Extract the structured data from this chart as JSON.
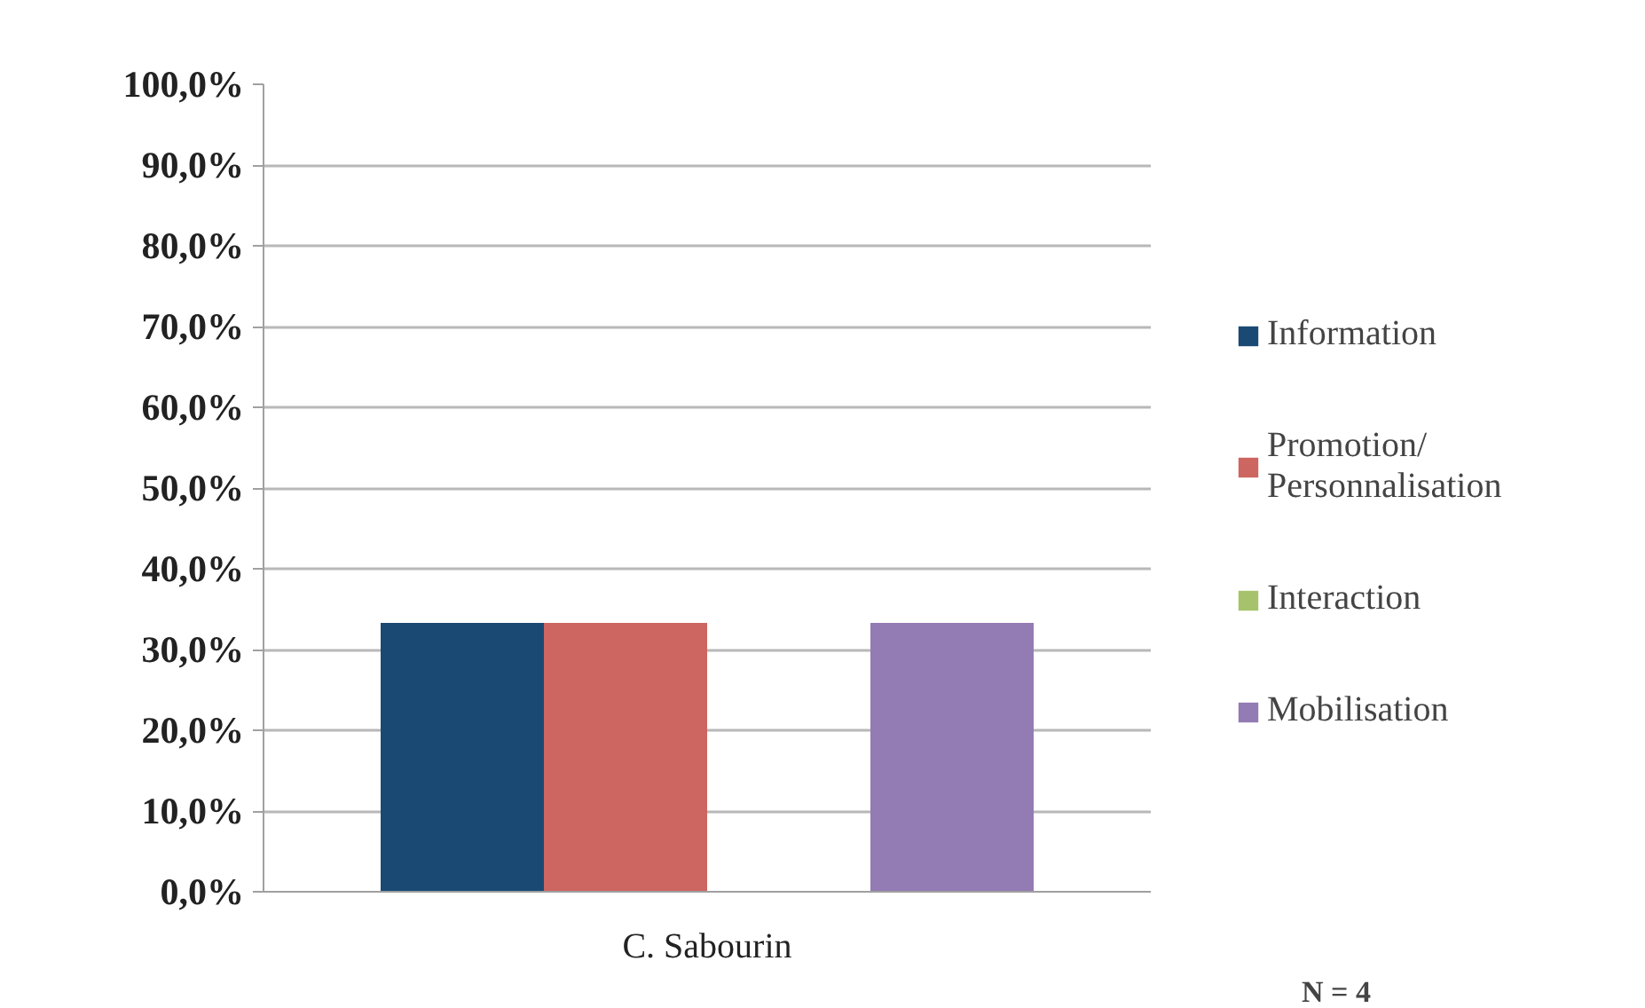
{
  "chart_data": {
    "type": "bar",
    "categories": [
      "C. Sabourin"
    ],
    "series": [
      {
        "name": "Information",
        "color": "#1a4a73",
        "values": [
          33.3
        ]
      },
      {
        "name": "Promotion/ Personnalisation",
        "color": "#cd6560",
        "values": [
          33.3
        ]
      },
      {
        "name": "Interaction",
        "color": "#a6c36c",
        "values": [
          0
        ]
      },
      {
        "name": "Mobilisation",
        "color": "#937bb3",
        "values": [
          33.3
        ]
      }
    ],
    "ylim": [
      0,
      100
    ],
    "yticks": [
      {
        "value": 0,
        "label": "0,0%"
      },
      {
        "value": 10,
        "label": "10,0%"
      },
      {
        "value": 20,
        "label": "20,0%"
      },
      {
        "value": 30,
        "label": "30,0%"
      },
      {
        "value": 40,
        "label": "40,0%"
      },
      {
        "value": 50,
        "label": "50,0%"
      },
      {
        "value": 60,
        "label": "60,0%"
      },
      {
        "value": 70,
        "label": "70,0%"
      },
      {
        "value": 80,
        "label": "80,0%"
      },
      {
        "value": 90,
        "label": "90,0%"
      },
      {
        "value": 100,
        "label": "100,0%"
      }
    ],
    "grid": "y",
    "legend": "right",
    "annotations": [
      "N = 4"
    ]
  }
}
